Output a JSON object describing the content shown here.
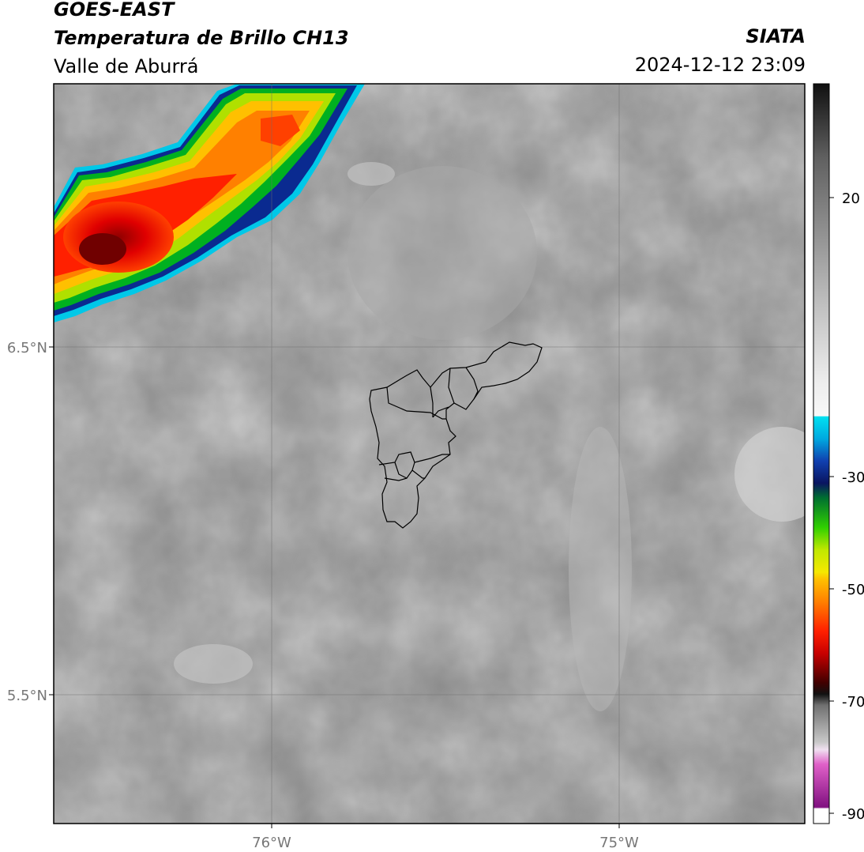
{
  "header": {
    "satellite": "GOES-EAST",
    "product": "Temperatura de Brillo CH13",
    "region": "Valle de Aburrá",
    "agency": "SIATA",
    "timestamp": "2024-12-12 23:09"
  },
  "map": {
    "lat_labels": [
      "6.5°N",
      "5.5°N"
    ],
    "lon_labels": [
      "76°W",
      "75°W"
    ],
    "gridlines": true,
    "background": "satellite brightness temperature field"
  },
  "colorbar": {
    "ticks": [
      "20",
      "-30",
      "-50",
      "-70",
      "-90"
    ],
    "colors": {
      "warm_gray_top": "#111111",
      "light_gray": "#f2f2f2",
      "cyan": "#00d8e8",
      "blue": "#0a3fa0",
      "dark_navy": "#0a1560",
      "green": "#00c020",
      "yellow": "#f5e800",
      "orange": "#ff8000",
      "red": "#e00000",
      "dark_red": "#2a0000",
      "magenta": "#e050c0",
      "purple": "#901090"
    }
  }
}
